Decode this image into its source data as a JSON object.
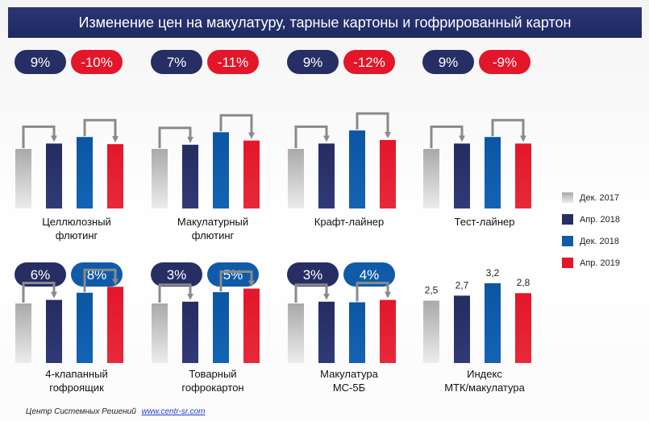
{
  "title": "Изменение цен на макулатуру, тарные картоны и гофрированный картон",
  "legend": [
    {
      "label": "Дек. 2017",
      "color": "#b8b8b8"
    },
    {
      "label": "Апр. 2018",
      "color": "#262e63"
    },
    {
      "label": "Дек. 2018",
      "color": "#0f5ba8"
    },
    {
      "label": "Апр. 2019",
      "color": "#e3162a"
    }
  ],
  "footer": {
    "source": "Центр Системных Решений",
    "link": "www.centr-sr.com"
  },
  "chart_data": [
    {
      "type": "bar",
      "label_lines": [
        "Целлюлозный",
        "флютинг"
      ],
      "categories": [
        "Дек. 2017",
        "Апр. 2018",
        "Дек. 2018",
        "Апр. 2019"
      ],
      "values": [
        100,
        109,
        120,
        108
      ],
      "badges": [
        {
          "text": "9%",
          "color": "#262e63"
        },
        {
          "text": "-10%",
          "color": "#e3162a"
        }
      ]
    },
    {
      "type": "bar",
      "label_lines": [
        "Макулатурный",
        "флютинг"
      ],
      "categories": [
        "Дек. 2017",
        "Апр. 2018",
        "Дек. 2018",
        "Апр. 2019"
      ],
      "values": [
        100,
        107,
        128,
        114
      ],
      "badges": [
        {
          "text": "7%",
          "color": "#262e63"
        },
        {
          "text": "-11%",
          "color": "#e3162a"
        }
      ]
    },
    {
      "type": "bar",
      "label_lines": [
        "Крафт-лайнер"
      ],
      "categories": [
        "Дек. 2017",
        "Апр. 2018",
        "Дек. 2018",
        "Апр. 2019"
      ],
      "values": [
        100,
        109,
        131,
        115
      ],
      "badges": [
        {
          "text": "9%",
          "color": "#262e63"
        },
        {
          "text": "-12%",
          "color": "#e3162a"
        }
      ]
    },
    {
      "type": "bar",
      "label_lines": [
        "Тест-лайнер"
      ],
      "categories": [
        "Дек. 2017",
        "Апр. 2018",
        "Дек. 2018",
        "Апр. 2019"
      ],
      "values": [
        100,
        109,
        120,
        109
      ],
      "badges": [
        {
          "text": "9%",
          "color": "#262e63"
        },
        {
          "text": "-9%",
          "color": "#e3162a"
        }
      ]
    },
    {
      "type": "bar",
      "label_lines": [
        "4-клапанный",
        "гофроящик"
      ],
      "categories": [
        "Дек. 2017",
        "Апр. 2018",
        "Дек. 2018",
        "Апр. 2019"
      ],
      "values": [
        100,
        106,
        118,
        128
      ],
      "badges": [
        {
          "text": "6%",
          "color": "#262e63"
        },
        {
          "text": "8%",
          "color": "#0f5ba8"
        }
      ]
    },
    {
      "type": "bar",
      "label_lines": [
        "Товарный",
        "гофрокартон"
      ],
      "categories": [
        "Дек. 2017",
        "Апр. 2018",
        "Дек. 2018",
        "Апр. 2019"
      ],
      "values": [
        100,
        103,
        119,
        125
      ],
      "badges": [
        {
          "text": "3%",
          "color": "#262e63"
        },
        {
          "text": "5%",
          "color": "#0f5ba8"
        }
      ]
    },
    {
      "type": "bar",
      "label_lines": [
        "Макулатура",
        "МС-5Б"
      ],
      "categories": [
        "Дек. 2017",
        "Апр. 2018",
        "Дек. 2018",
        "Апр. 2019"
      ],
      "values": [
        100,
        103,
        102,
        106
      ],
      "badges": [
        {
          "text": "3%",
          "color": "#262e63"
        },
        {
          "text": "4%",
          "color": "#0f5ba8"
        }
      ]
    },
    {
      "type": "bar",
      "label_lines": [
        "Индекс",
        "МТК/макулатура"
      ],
      "categories": [
        "Дек. 2017",
        "Апр. 2018",
        "Дек. 2018",
        "Апр. 2019"
      ],
      "values": [
        2.5,
        2.7,
        3.2,
        2.8
      ],
      "value_labels": [
        "2,5",
        "2,7",
        "3,2",
        "2,8"
      ],
      "badges": []
    }
  ]
}
